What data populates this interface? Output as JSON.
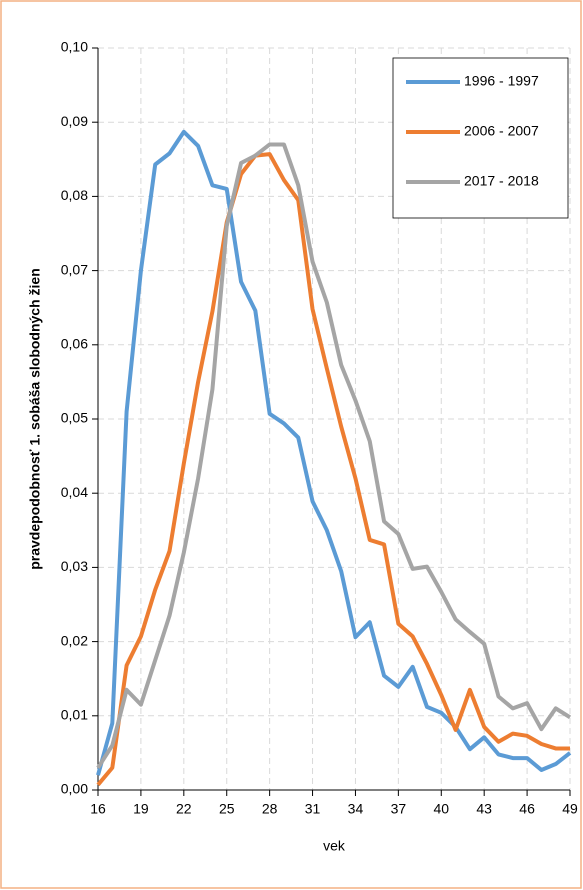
{
  "chart_data": {
    "type": "line",
    "x_label": "vek",
    "y_label": "pravdepodobnosť 1. sobáša slobodných žien",
    "x": [
      16,
      17,
      18,
      19,
      20,
      21,
      22,
      23,
      24,
      25,
      26,
      27,
      28,
      29,
      30,
      31,
      32,
      33,
      34,
      35,
      36,
      37,
      38,
      39,
      40,
      41,
      42,
      43,
      44,
      45,
      46,
      47,
      48,
      49
    ],
    "series": [
      {
        "name": "1996 - 1997",
        "color": "#5b9bd5",
        "values": [
          0.002,
          0.009,
          0.051,
          0.07,
          0.0843,
          0.0858,
          0.0887,
          0.0868,
          0.0815,
          0.081,
          0.0685,
          0.0646,
          0.0507,
          0.0494,
          0.0475,
          0.0389,
          0.035,
          0.0295,
          0.0206,
          0.0226,
          0.0154,
          0.0139,
          0.0166,
          0.0112,
          0.0104,
          0.0085,
          0.0055,
          0.0071,
          0.0048,
          0.0043,
          0.0043,
          0.0027,
          0.0035,
          0.005
        ]
      },
      {
        "name": "2006 - 2007",
        "color": "#ed7d31",
        "values": [
          0.0007,
          0.003,
          0.0168,
          0.0207,
          0.027,
          0.0322,
          0.044,
          0.055,
          0.0645,
          0.0765,
          0.083,
          0.0855,
          0.0857,
          0.0822,
          0.0795,
          0.0648,
          0.0568,
          0.049,
          0.042,
          0.0337,
          0.0331,
          0.0224,
          0.0207,
          0.017,
          0.0128,
          0.0081,
          0.0135,
          0.0085,
          0.0065,
          0.0076,
          0.0073,
          0.0062,
          0.0056,
          0.0056
        ]
      },
      {
        "name": "2017 - 2018",
        "color": "#a5a5a5",
        "values": [
          0.003,
          0.006,
          0.0135,
          0.0115,
          0.0175,
          0.0235,
          0.032,
          0.042,
          0.054,
          0.076,
          0.0845,
          0.0855,
          0.087,
          0.087,
          0.0815,
          0.0712,
          0.0657,
          0.0573,
          0.0525,
          0.047,
          0.0362,
          0.0345,
          0.0298,
          0.0301,
          0.0267,
          0.023,
          0.0213,
          0.0197,
          0.0126,
          0.011,
          0.0117,
          0.0082,
          0.011,
          0.0098
        ]
      }
    ],
    "xlim": [
      16,
      49
    ],
    "xticks": [
      16,
      19,
      22,
      25,
      28,
      31,
      34,
      37,
      40,
      43,
      46,
      49
    ],
    "ylim": [
      0,
      0.1
    ],
    "yticks": [
      {
        "value": 0,
        "label": "0,00"
      },
      {
        "value": 0.01,
        "label": "0,01"
      },
      {
        "value": 0.02,
        "label": "0,02"
      },
      {
        "value": 0.03,
        "label": "0,03"
      },
      {
        "value": 0.04,
        "label": "0,04"
      },
      {
        "value": 0.05,
        "label": "0,05"
      },
      {
        "value": 0.06,
        "label": "0,06"
      },
      {
        "value": 0.07,
        "label": "0,07"
      },
      {
        "value": 0.08,
        "label": "0,08"
      },
      {
        "value": 0.09,
        "label": "0,09"
      },
      {
        "value": 0.1,
        "label": "0,10"
      }
    ],
    "grid": true,
    "legend": "upper right"
  }
}
